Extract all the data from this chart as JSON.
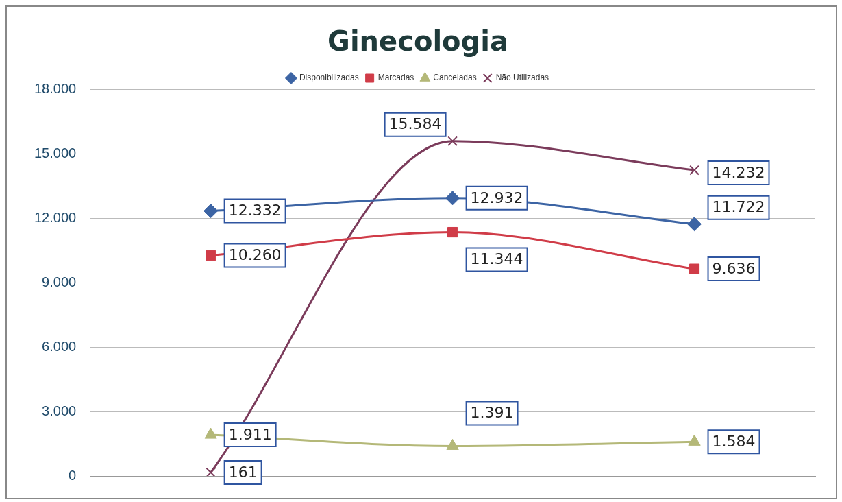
{
  "chart_data": {
    "type": "line",
    "title": "Ginecologia",
    "categories": [
      null,
      null,
      null
    ],
    "series": [
      {
        "name": "Disponibilizadas",
        "color": "#3c64a4",
        "marker": "diamond",
        "values": [
          12332,
          12932,
          11722
        ],
        "value_labels": [
          "12.332",
          "12.932",
          "11.722"
        ]
      },
      {
        "name": "Marcadas",
        "color": "#d03c48",
        "marker": "square",
        "values": [
          10260,
          11344,
          9636
        ],
        "value_labels": [
          "10.260",
          "11.344",
          "9.636"
        ]
      },
      {
        "name": "Canceladas",
        "color": "#b4b878",
        "marker": "triangle",
        "values": [
          1911,
          1391,
          1584
        ],
        "value_labels": [
          "1.911",
          "1.391",
          "1.584"
        ]
      },
      {
        "name": "Não Utilizadas",
        "color": "#7b3b5b",
        "marker": "cross",
        "values": [
          161,
          15584,
          14232
        ],
        "value_labels": [
          "161",
          "15.584",
          "14.232"
        ]
      }
    ],
    "ylim": [
      0,
      18000
    ],
    "yticks": [
      {
        "value": 0,
        "label": "0"
      },
      {
        "value": 3000,
        "label": "3.000"
      },
      {
        "value": 6000,
        "label": "6.000"
      },
      {
        "value": 9000,
        "label": "9.000"
      },
      {
        "value": 12000,
        "label": "12.000"
      },
      {
        "value": 15000,
        "label": "15.000"
      },
      {
        "value": 18000,
        "label": "18.000"
      }
    ],
    "grid": "y",
    "legend": "top",
    "tick_labels": "y"
  }
}
